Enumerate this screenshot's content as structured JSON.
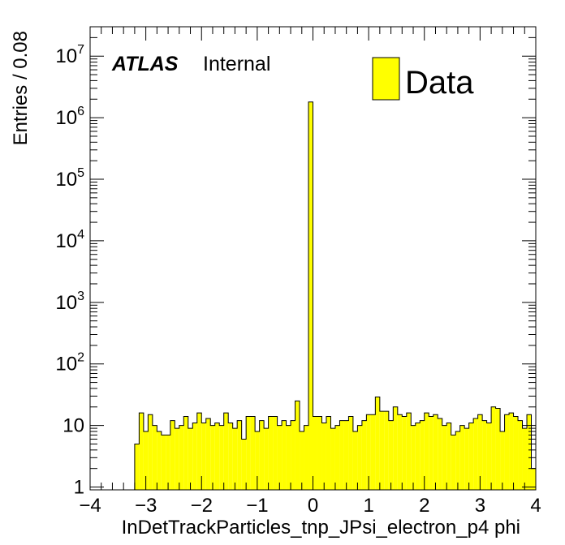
{
  "chart_data": {
    "type": "bar",
    "title": "",
    "xlabel": "InDetTrackParticles_tnp_JPsi_electron_p4 phi",
    "ylabel": "Entries / 0.08",
    "xlim": [
      -4,
      4
    ],
    "ylim": [
      0.9,
      30000000
    ],
    "log_y": true,
    "grid": false,
    "legend_position": "top-right",
    "atlas_label": {
      "bold": "ATLAS",
      "text": "Internal"
    },
    "legend": [
      {
        "label": "Data",
        "color": "#ffff00"
      }
    ],
    "x_ticks": [
      {
        "value": -4,
        "label": "−4"
      },
      {
        "value": -3,
        "label": "−3"
      },
      {
        "value": -2,
        "label": "−2"
      },
      {
        "value": -1,
        "label": "−1"
      },
      {
        "value": 0,
        "label": "0"
      },
      {
        "value": 1,
        "label": "1"
      },
      {
        "value": 2,
        "label": "2"
      },
      {
        "value": 3,
        "label": "3"
      },
      {
        "value": 4,
        "label": "4"
      }
    ],
    "y_ticks": [
      {
        "value": 1,
        "base": "1",
        "exp": ""
      },
      {
        "value": 10,
        "base": "10",
        "exp": ""
      },
      {
        "value": 100,
        "base": "10",
        "exp": "2"
      },
      {
        "value": 1000,
        "base": "10",
        "exp": "3"
      },
      {
        "value": 10000,
        "base": "10",
        "exp": "4"
      },
      {
        "value": 100000,
        "base": "10",
        "exp": "5"
      },
      {
        "value": 1000000,
        "base": "10",
        "exp": "6"
      },
      {
        "value": 10000000,
        "base": "10",
        "exp": "7"
      }
    ],
    "bin_width": 0.08,
    "bin_start": -3.2,
    "series": [
      {
        "name": "Data",
        "color": "#ffff00",
        "values": [
          5,
          16,
          8,
          15,
          10,
          8,
          7,
          7,
          12,
          9,
          10,
          14,
          9,
          11,
          16,
          11,
          13,
          10,
          11,
          10,
          16,
          11,
          9,
          12,
          6,
          14,
          14,
          8,
          12,
          9,
          14,
          14,
          10,
          12,
          10,
          12,
          25,
          8,
          10,
          1800000,
          14,
          14,
          11,
          14,
          9,
          10,
          12,
          12,
          14,
          8,
          10,
          12,
          15,
          15,
          29,
          17,
          17,
          12,
          20,
          15,
          14,
          16,
          10,
          11,
          12,
          16,
          14,
          15,
          13,
          10,
          11,
          7,
          8,
          10,
          9,
          11,
          13,
          15,
          12,
          11,
          20,
          19,
          8,
          15,
          16,
          14,
          12,
          9,
          15,
          2
        ]
      }
    ]
  }
}
